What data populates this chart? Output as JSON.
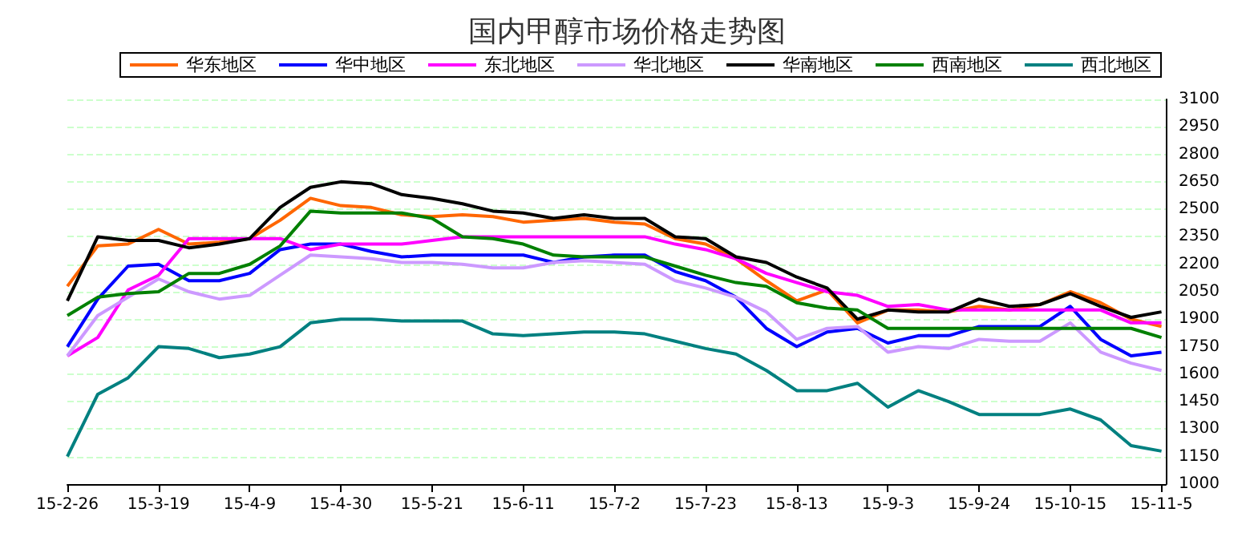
{
  "chart_data": {
    "type": "line",
    "title": "国内甲醇市场价格走势图",
    "x": [
      "--02-26",
      "--03-05",
      "--03-12",
      "--03-19",
      "--03-26",
      "--04-02",
      "--04-09",
      "--04-16",
      "--04-23",
      "--04-30",
      "--05-07",
      "--05-14",
      "--05-21",
      "--05-28",
      "--06-04",
      "--06-11",
      "--06-18",
      "--06-25",
      "--07-02",
      "--07-09",
      "--07-16",
      "--07-23",
      "--07-30",
      "--08-06",
      "--08-13",
      "--08-20",
      "--08-27",
      "--09-03",
      "--09-10",
      "--09-17",
      "--09-24",
      "--10-01",
      "--10-08",
      "--10-15",
      "--10-22",
      "--10-29",
      "--11-05"
    ],
    "series": [
      {
        "name": "华东地区",
        "color": "#ff6600",
        "values": [
          2080,
          2300,
          2310,
          2390,
          2310,
          2320,
          2340,
          2440,
          2560,
          2520,
          2510,
          2470,
          2460,
          2470,
          2460,
          2430,
          2440,
          2450,
          2430,
          2420,
          2340,
          2310,
          2230,
          2110,
          2000,
          2060,
          1880,
          1950,
          1950,
          1940,
          1970,
          1950,
          1980,
          2050,
          1990,
          1900,
          1860
        ]
      },
      {
        "name": "华中地区",
        "color": "#0000ff",
        "values": [
          1750,
          2010,
          2190,
          2200,
          2110,
          2110,
          2150,
          2280,
          2310,
          2310,
          2270,
          2240,
          2250,
          2250,
          2250,
          2250,
          2210,
          2240,
          2250,
          2250,
          2160,
          2110,
          2020,
          1850,
          1750,
          1830,
          1850,
          1770,
          1810,
          1810,
          1860,
          1860,
          1860,
          1970,
          1790,
          1700,
          1720
        ]
      },
      {
        "name": "东北地区",
        "color": "#ff00ff",
        "values": [
          1700,
          1800,
          2060,
          2140,
          2340,
          2340,
          2340,
          2340,
          2280,
          2310,
          2310,
          2310,
          2330,
          2350,
          2350,
          2350,
          2350,
          2350,
          2350,
          2350,
          2310,
          2280,
          2230,
          2150,
          2100,
          2050,
          2030,
          1970,
          1980,
          1950,
          1950,
          1950,
          1950,
          1950,
          1950,
          1880,
          1880
        ]
      },
      {
        "name": "华北地区",
        "color": "#cc99ff",
        "values": [
          1700,
          1920,
          2020,
          2120,
          2050,
          2010,
          2030,
          2140,
          2250,
          2240,
          2230,
          2210,
          2210,
          2200,
          2180,
          2180,
          2210,
          2220,
          2210,
          2200,
          2110,
          2070,
          2020,
          1940,
          1790,
          1850,
          1860,
          1720,
          1750,
          1740,
          1790,
          1780,
          1780,
          1880,
          1720,
          1660,
          1620
        ]
      },
      {
        "name": "华南地区",
        "color": "#000000",
        "values": [
          2000,
          2350,
          2330,
          2330,
          2290,
          2310,
          2340,
          2510,
          2620,
          2650,
          2640,
          2580,
          2560,
          2530,
          2490,
          2480,
          2450,
          2470,
          2450,
          2450,
          2350,
          2340,
          2240,
          2210,
          2130,
          2070,
          1900,
          1950,
          1940,
          1940,
          2010,
          1970,
          1980,
          2040,
          1970,
          1910,
          1940
        ]
      },
      {
        "name": "西南地区",
        "color": "#008000",
        "values": [
          1920,
          2020,
          2040,
          2050,
          2150,
          2150,
          2200,
          2300,
          2490,
          2480,
          2480,
          2480,
          2450,
          2350,
          2340,
          2310,
          2250,
          2240,
          2240,
          2240,
          2190,
          2140,
          2100,
          2080,
          1990,
          1960,
          1950,
          1850,
          1850,
          1850,
          1850,
          1850,
          1850,
          1850,
          1850,
          1850,
          1800
        ]
      },
      {
        "name": "西北地区",
        "color": "#008080",
        "values": [
          1150,
          1490,
          1580,
          1750,
          1740,
          1690,
          1710,
          1750,
          1880,
          1900,
          1900,
          1890,
          1890,
          1890,
          1820,
          1810,
          1820,
          1830,
          1830,
          1820,
          1780,
          1740,
          1710,
          1620,
          1510,
          1510,
          1550,
          1420,
          1510,
          1450,
          1380,
          1380,
          1380,
          1410,
          1350,
          1210,
          1180
        ]
      }
    ],
    "xlim": [
      "--02-26",
      "--11-06"
    ],
    "xticks": [
      {
        "value": "--02-26",
        "label": "15-2-26"
      },
      {
        "value": "--03-19",
        "label": "15-3-19"
      },
      {
        "value": "--04-09",
        "label": "15-4-9"
      },
      {
        "value": "--04-30",
        "label": "15-4-30"
      },
      {
        "value": "--05-21",
        "label": "15-5-21"
      },
      {
        "value": "--06-11",
        "label": "15-6-11"
      },
      {
        "value": "--07-02",
        "label": "15-7-2"
      },
      {
        "value": "--07-23",
        "label": "15-7-23"
      },
      {
        "value": "--08-13",
        "label": "15-8-13"
      },
      {
        "value": "--09-03",
        "label": "15-9-3"
      },
      {
        "value": "--09-24",
        "label": "15-9-24"
      },
      {
        "value": "--10-15",
        "label": "15-10-15"
      },
      {
        "value": "--11-05",
        "label": "15-11-5"
      }
    ],
    "ylim": [
      1000,
      3100
    ],
    "yticks": [
      1000,
      1150,
      1300,
      1450,
      1600,
      1750,
      1900,
      2050,
      2200,
      2350,
      2500,
      2650,
      2800,
      2950,
      3100
    ],
    "grid": "y",
    "legend": "top",
    "marker": "none",
    "line_style": "solid"
  }
}
